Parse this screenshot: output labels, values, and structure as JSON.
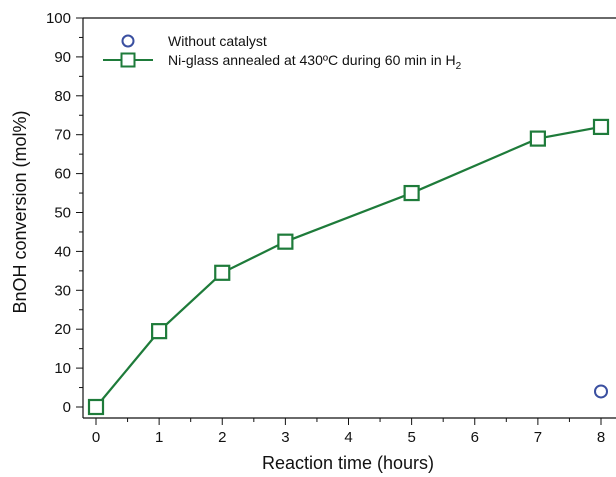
{
  "chart_data": {
    "type": "line",
    "title": "",
    "xlabel": "Reaction time (hours)",
    "ylabel": "BnOH conversion (mol%)",
    "xlim": [
      0,
      8
    ],
    "ylim": [
      0,
      100
    ],
    "x_ticks": [
      "0",
      "1",
      "2",
      "3",
      "4",
      "5",
      "6",
      "7",
      "8"
    ],
    "y_ticks": [
      "0",
      "10",
      "20",
      "30",
      "40",
      "50",
      "60",
      "70",
      "80",
      "90",
      "100"
    ],
    "grid": false,
    "legend_position": "top-left",
    "series": [
      {
        "name": "Without catalyst",
        "marker": "circle",
        "line": false,
        "color": "#3a4fa0",
        "x": [
          8
        ],
        "y": [
          4
        ]
      },
      {
        "name": "Ni-glass annealed at 430ºC during 60 min in H",
        "name_subscript": "2",
        "marker": "square",
        "line": true,
        "color": "#1e7b3a",
        "x": [
          0,
          1,
          2,
          3,
          5,
          7,
          8
        ],
        "y": [
          0,
          19.5,
          34.5,
          42.5,
          55,
          69,
          72
        ]
      }
    ]
  }
}
